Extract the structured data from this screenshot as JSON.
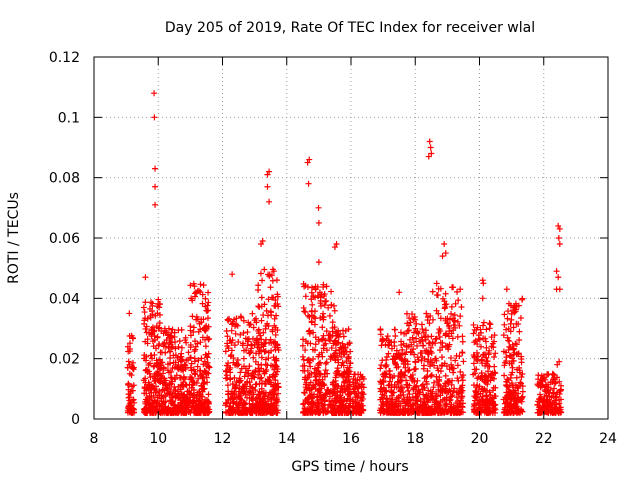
{
  "chart_data": {
    "type": "scatter",
    "title": "Day 205 of 2019, Rate Of TEC Index for receiver wlal",
    "xlabel": "GPS time / hours",
    "ylabel": "ROTI / TECUs",
    "xlim": [
      8,
      24
    ],
    "ylim": [
      0,
      0.12
    ],
    "x_ticks": [
      "8",
      "10",
      "12",
      "14",
      "16",
      "18",
      "20",
      "22",
      "24"
    ],
    "y_ticks": [
      "0",
      "0.02",
      "0.04",
      "0.06",
      "0.08",
      "0.1",
      "0.12"
    ],
    "grid": true,
    "marker": "+",
    "marker_color": "#ff0000",
    "series": [
      {
        "name": "ROTI",
        "clusters": [
          {
            "x_range": [
              9.05,
              9.25
            ],
            "density": 60,
            "base_max": 0.03
          },
          {
            "x_range": [
              9.55,
              10.1
            ],
            "density": 220,
            "base_max": 0.04
          },
          {
            "x_range": [
              10.1,
              11.0
            ],
            "density": 320,
            "base_max": 0.03
          },
          {
            "x_range": [
              11.0,
              11.6
            ],
            "density": 240,
            "base_max": 0.045
          },
          {
            "x_range": [
              12.1,
              13.1
            ],
            "density": 300,
            "base_max": 0.035
          },
          {
            "x_range": [
              13.1,
              13.75
            ],
            "density": 260,
            "base_max": 0.05
          },
          {
            "x_range": [
              14.5,
              15.5
            ],
            "density": 340,
            "base_max": 0.045
          },
          {
            "x_range": [
              15.5,
              16.0
            ],
            "density": 200,
            "base_max": 0.03
          },
          {
            "x_range": [
              16.05,
              16.4
            ],
            "density": 90,
            "base_max": 0.015
          },
          {
            "x_range": [
              16.9,
              17.7
            ],
            "density": 250,
            "base_max": 0.03
          },
          {
            "x_range": [
              17.7,
              18.5
            ],
            "density": 260,
            "base_max": 0.035
          },
          {
            "x_range": [
              18.5,
              19.5
            ],
            "density": 280,
            "base_max": 0.045
          },
          {
            "x_range": [
              19.8,
              20.5
            ],
            "density": 220,
            "base_max": 0.032
          },
          {
            "x_range": [
              20.75,
              21.35
            ],
            "density": 200,
            "base_max": 0.04
          },
          {
            "x_range": [
              21.8,
              22.55
            ],
            "density": 180,
            "base_max": 0.015
          }
        ],
        "outliers": [
          {
            "x": 9.6,
            "y": 0.047
          },
          {
            "x": 9.87,
            "y": 0.108
          },
          {
            "x": 9.88,
            "y": 0.1
          },
          {
            "x": 9.9,
            "y": 0.083
          },
          {
            "x": 9.9,
            "y": 0.077
          },
          {
            "x": 9.9,
            "y": 0.071
          },
          {
            "x": 9.1,
            "y": 0.035
          },
          {
            "x": 12.3,
            "y": 0.048
          },
          {
            "x": 13.2,
            "y": 0.058
          },
          {
            "x": 13.25,
            "y": 0.059
          },
          {
            "x": 13.45,
            "y": 0.082
          },
          {
            "x": 13.4,
            "y": 0.081
          },
          {
            "x": 13.4,
            "y": 0.077
          },
          {
            "x": 13.45,
            "y": 0.072
          },
          {
            "x": 13.6,
            "y": 0.049
          },
          {
            "x": 14.65,
            "y": 0.085
          },
          {
            "x": 14.7,
            "y": 0.086
          },
          {
            "x": 14.68,
            "y": 0.078
          },
          {
            "x": 14.99,
            "y": 0.07
          },
          {
            "x": 15.0,
            "y": 0.065
          },
          {
            "x": 15.5,
            "y": 0.057
          },
          {
            "x": 15.55,
            "y": 0.058
          },
          {
            "x": 15.0,
            "y": 0.052
          },
          {
            "x": 17.5,
            "y": 0.042
          },
          {
            "x": 18.45,
            "y": 0.092
          },
          {
            "x": 18.48,
            "y": 0.09
          },
          {
            "x": 18.42,
            "y": 0.087
          },
          {
            "x": 18.5,
            "y": 0.088
          },
          {
            "x": 18.9,
            "y": 0.058
          },
          {
            "x": 18.95,
            "y": 0.055
          },
          {
            "x": 18.85,
            "y": 0.054
          },
          {
            "x": 19.4,
            "y": 0.043
          },
          {
            "x": 20.1,
            "y": 0.046
          },
          {
            "x": 20.12,
            "y": 0.045
          },
          {
            "x": 20.1,
            "y": 0.04
          },
          {
            "x": 20.85,
            "y": 0.043
          },
          {
            "x": 22.45,
            "y": 0.064
          },
          {
            "x": 22.5,
            "y": 0.063
          },
          {
            "x": 22.47,
            "y": 0.06
          },
          {
            "x": 22.5,
            "y": 0.058
          },
          {
            "x": 22.4,
            "y": 0.049
          },
          {
            "x": 22.45,
            "y": 0.047
          },
          {
            "x": 22.5,
            "y": 0.043
          },
          {
            "x": 22.4,
            "y": 0.043
          },
          {
            "x": 22.48,
            "y": 0.019
          },
          {
            "x": 22.42,
            "y": 0.018
          }
        ]
      }
    ]
  }
}
